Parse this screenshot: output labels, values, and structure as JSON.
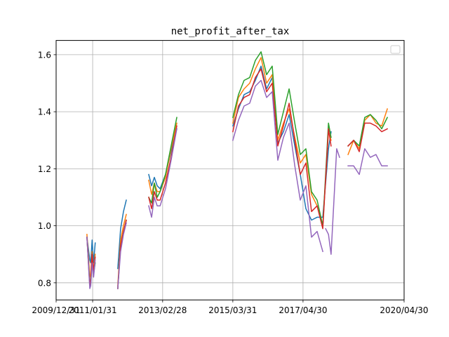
{
  "chart_data": {
    "type": "line",
    "title": "net_profit_after_tax",
    "xlabel": "",
    "ylabel": "",
    "xlim": [
      "2009-12-31",
      "2020-04-30"
    ],
    "ylim": [
      0.74,
      1.65
    ],
    "grid": true,
    "legend": "top-right",
    "x_ticks": [
      "2009/12/31",
      "2011/01/31",
      "2013/02/28",
      "2015/03/31",
      "2017/04/30",
      "2020/04/30"
    ],
    "y_ticks": [
      "0.8",
      "1.0",
      "1.2",
      "1.4",
      "1.6"
    ],
    "series": [
      {
        "color": "#1f77b4",
        "segments": [
          [
            [
              "2010-11-30",
              0.96
            ],
            [
              "2010-12-31",
              0.88
            ],
            [
              "2011-01-10",
              0.87
            ],
            [
              "2011-01-25",
              0.95
            ],
            [
              "2011-02-10",
              0.87
            ],
            [
              "2011-02-28",
              0.94
            ]
          ],
          [
            [
              "2011-10-31",
              0.85
            ],
            [
              "2011-11-30",
              0.99
            ],
            [
              "2011-12-31",
              1.05
            ],
            [
              "2012-01-31",
              1.09
            ]
          ],
          [
            [
              "2012-09-30",
              1.18
            ],
            [
              "2012-10-31",
              1.14
            ],
            [
              "2012-11-30",
              1.17
            ],
            [
              "2012-12-31",
              1.14
            ],
            [
              "2013-01-31",
              1.13
            ],
            [
              "2013-03-31",
              1.18
            ],
            [
              "2013-05-31",
              1.26
            ],
            [
              "2013-07-31",
              1.34
            ]
          ],
          [
            [
              "2015-03-31",
              1.35
            ],
            [
              "2015-05-31",
              1.41
            ],
            [
              "2015-07-31",
              1.46
            ],
            [
              "2015-09-30",
              1.47
            ],
            [
              "2015-11-30",
              1.51
            ],
            [
              "2016-01-31",
              1.56
            ],
            [
              "2016-03-31",
              1.48
            ],
            [
              "2016-05-31",
              1.52
            ],
            [
              "2016-07-31",
              1.29
            ],
            [
              "2016-09-30",
              1.33
            ],
            [
              "2016-11-30",
              1.39
            ],
            [
              "2017-01-31",
              1.28
            ],
            [
              "2017-03-31",
              1.18
            ],
            [
              "2017-05-31",
              1.06
            ],
            [
              "2017-07-31",
              1.02
            ],
            [
              "2017-09-30",
              1.03
            ],
            [
              "2017-11-30",
              1.03
            ],
            [
              "2018-01-31",
              1.27
            ],
            [
              "2018-02-28",
              1.33
            ]
          ]
        ]
      },
      {
        "color": "#ff7f0e",
        "segments": [
          [
            [
              "2010-11-30",
              0.97
            ],
            [
              "2010-12-31",
              0.82
            ],
            [
              "2011-01-10",
              0.83
            ],
            [
              "2011-01-25",
              0.91
            ],
            [
              "2011-02-10",
              0.84
            ],
            [
              "2011-02-28",
              0.9
            ]
          ],
          [
            [
              "2011-10-31",
              0.79
            ],
            [
              "2011-11-30",
              0.95
            ],
            [
              "2011-12-31",
              1.0
            ],
            [
              "2012-01-31",
              1.04
            ]
          ],
          [
            [
              "2012-09-30",
              1.16
            ],
            [
              "2012-10-31",
              1.11
            ],
            [
              "2012-11-30",
              1.15
            ],
            [
              "2012-12-31",
              1.12
            ],
            [
              "2013-01-31",
              1.12
            ],
            [
              "2013-03-31",
              1.17
            ],
            [
              "2013-05-31",
              1.27
            ],
            [
              "2013-07-31",
              1.36
            ]
          ],
          [
            [
              "2015-03-31",
              1.36
            ],
            [
              "2015-05-31",
              1.45
            ],
            [
              "2015-07-31",
              1.48
            ],
            [
              "2015-09-30",
              1.5
            ],
            [
              "2015-11-30",
              1.55
            ],
            [
              "2016-01-31",
              1.59
            ],
            [
              "2016-03-31",
              1.5
            ],
            [
              "2016-05-31",
              1.53
            ],
            [
              "2016-07-31",
              1.3
            ],
            [
              "2016-09-30",
              1.36
            ],
            [
              "2016-11-30",
              1.41
            ],
            [
              "2017-01-31",
              1.31
            ],
            [
              "2017-03-31",
              1.22
            ],
            [
              "2017-05-31",
              1.25
            ],
            [
              "2017-07-31",
              1.11
            ],
            [
              "2017-09-30",
              1.07
            ],
            [
              "2017-11-30",
              1.0
            ],
            [
              "2018-01-31",
              1.33
            ],
            [
              "2018-02-28",
              1.3
            ]
          ],
          [
            [
              "2018-08-31",
              1.25
            ],
            [
              "2018-10-31",
              1.3
            ],
            [
              "2018-12-31",
              1.27
            ],
            [
              "2019-02-28",
              1.37
            ],
            [
              "2019-04-30",
              1.39
            ],
            [
              "2019-06-30",
              1.36
            ],
            [
              "2019-08-31",
              1.35
            ],
            [
              "2019-10-31",
              1.41
            ]
          ]
        ]
      },
      {
        "color": "#2ca02c",
        "segments": [
          [
            [
              "2010-11-30",
              0.96
            ],
            [
              "2010-12-31",
              0.8
            ],
            [
              "2011-01-10",
              0.8
            ],
            [
              "2011-01-25",
              0.89
            ],
            [
              "2011-02-10",
              0.83
            ],
            [
              "2011-02-28",
              0.87
            ]
          ],
          [
            [
              "2011-10-31",
              0.78
            ],
            [
              "2011-11-30",
              0.93
            ],
            [
              "2011-12-31",
              0.98
            ],
            [
              "2012-01-31",
              1.02
            ]
          ],
          [
            [
              "2012-09-30",
              1.1
            ],
            [
              "2012-10-31",
              1.08
            ],
            [
              "2012-11-30",
              1.15
            ],
            [
              "2012-12-31",
              1.1
            ],
            [
              "2013-01-31",
              1.12
            ],
            [
              "2013-03-31",
              1.18
            ],
            [
              "2013-05-31",
              1.28
            ],
            [
              "2013-07-31",
              1.38
            ]
          ],
          [
            [
              "2015-03-31",
              1.38
            ],
            [
              "2015-05-31",
              1.46
            ],
            [
              "2015-07-31",
              1.51
            ],
            [
              "2015-09-30",
              1.52
            ],
            [
              "2015-11-30",
              1.58
            ],
            [
              "2016-01-31",
              1.61
            ],
            [
              "2016-03-31",
              1.53
            ],
            [
              "2016-05-31",
              1.56
            ],
            [
              "2016-07-31",
              1.32
            ],
            [
              "2016-09-30",
              1.4
            ],
            [
              "2016-11-30",
              1.48
            ],
            [
              "2017-01-31",
              1.36
            ],
            [
              "2017-03-31",
              1.25
            ],
            [
              "2017-05-31",
              1.27
            ],
            [
              "2017-07-31",
              1.12
            ],
            [
              "2017-09-30",
              1.09
            ],
            [
              "2017-11-30",
              1.0
            ],
            [
              "2018-01-31",
              1.36
            ],
            [
              "2018-02-28",
              1.31
            ]
          ],
          [
            [
              "2018-08-31",
              1.28
            ],
            [
              "2018-10-31",
              1.3
            ],
            [
              "2018-12-31",
              1.28
            ],
            [
              "2019-02-28",
              1.38
            ],
            [
              "2019-04-30",
              1.39
            ],
            [
              "2019-06-30",
              1.37
            ],
            [
              "2019-08-31",
              1.34
            ],
            [
              "2019-10-31",
              1.38
            ]
          ]
        ]
      },
      {
        "color": "#d62728",
        "segments": [
          [
            [
              "2010-11-30",
              0.96
            ],
            [
              "2010-12-31",
              0.79
            ],
            [
              "2011-01-10",
              0.81
            ],
            [
              "2011-01-25",
              0.9
            ],
            [
              "2011-02-10",
              0.84
            ],
            [
              "2011-02-28",
              0.89
            ]
          ],
          [
            [
              "2011-10-31",
              0.78
            ],
            [
              "2011-11-30",
              0.93
            ],
            [
              "2011-12-31",
              0.98
            ],
            [
              "2012-01-31",
              1.02
            ]
          ],
          [
            [
              "2012-09-30",
              1.1
            ],
            [
              "2012-10-31",
              1.06
            ],
            [
              "2012-11-30",
              1.12
            ],
            [
              "2012-12-31",
              1.09
            ],
            [
              "2013-01-31",
              1.09
            ],
            [
              "2013-03-31",
              1.15
            ],
            [
              "2013-05-31",
              1.24
            ],
            [
              "2013-07-31",
              1.35
            ]
          ],
          [
            [
              "2015-03-31",
              1.33
            ],
            [
              "2015-05-31",
              1.42
            ],
            [
              "2015-07-31",
              1.45
            ],
            [
              "2015-09-30",
              1.46
            ],
            [
              "2015-11-30",
              1.52
            ],
            [
              "2016-01-31",
              1.55
            ],
            [
              "2016-03-31",
              1.47
            ],
            [
              "2016-05-31",
              1.5
            ],
            [
              "2016-07-31",
              1.28
            ],
            [
              "2016-09-30",
              1.35
            ],
            [
              "2016-11-30",
              1.43
            ],
            [
              "2017-01-31",
              1.3
            ],
            [
              "2017-03-31",
              1.18
            ],
            [
              "2017-05-31",
              1.22
            ],
            [
              "2017-07-31",
              1.05
            ],
            [
              "2017-09-30",
              1.07
            ],
            [
              "2017-11-30",
              0.99
            ],
            [
              "2018-01-31",
              1.34
            ],
            [
              "2018-02-28",
              1.28
            ]
          ],
          [
            [
              "2018-08-31",
              1.28
            ],
            [
              "2018-10-31",
              1.3
            ],
            [
              "2018-12-31",
              1.26
            ],
            [
              "2019-02-28",
              1.36
            ],
            [
              "2019-04-30",
              1.36
            ],
            [
              "2019-06-30",
              1.35
            ],
            [
              "2019-08-31",
              1.33
            ],
            [
              "2019-10-31",
              1.34
            ]
          ]
        ]
      },
      {
        "color": "#9467bd",
        "segments": [
          [
            [
              "2010-11-30",
              0.96
            ],
            [
              "2010-12-31",
              0.78
            ],
            [
              "2011-01-10",
              0.79
            ],
            [
              "2011-01-25",
              0.87
            ],
            [
              "2011-02-10",
              0.82
            ],
            [
              "2011-02-28",
              0.88
            ]
          ],
          [
            [
              "2011-10-31",
              0.78
            ],
            [
              "2011-11-30",
              0.91
            ],
            [
              "2011-12-31",
              0.97
            ],
            [
              "2012-01-31",
              1.01
            ]
          ],
          [
            [
              "2012-09-30",
              1.07
            ],
            [
              "2012-10-31",
              1.03
            ],
            [
              "2012-11-30",
              1.1
            ],
            [
              "2012-12-31",
              1.07
            ],
            [
              "2013-01-31",
              1.07
            ],
            [
              "2013-03-31",
              1.13
            ],
            [
              "2013-05-31",
              1.23
            ],
            [
              "2013-07-31",
              1.34
            ]
          ],
          [
            [
              "2015-03-31",
              1.3
            ],
            [
              "2015-05-31",
              1.37
            ],
            [
              "2015-07-31",
              1.42
            ],
            [
              "2015-09-30",
              1.43
            ],
            [
              "2015-11-30",
              1.49
            ],
            [
              "2016-01-31",
              1.51
            ],
            [
              "2016-03-31",
              1.45
            ],
            [
              "2016-05-31",
              1.47
            ],
            [
              "2016-07-31",
              1.23
            ],
            [
              "2016-09-30",
              1.31
            ],
            [
              "2016-11-30",
              1.36
            ],
            [
              "2017-01-31",
              1.21
            ],
            [
              "2017-03-31",
              1.09
            ],
            [
              "2017-05-31",
              1.14
            ],
            [
              "2017-07-31",
              0.96
            ],
            [
              "2017-09-30",
              0.98
            ],
            [
              "2017-11-30",
              0.91
            ]
          ],
          [
            [
              "2017-12-31",
              0.99
            ],
            [
              "2018-01-31",
              0.97
            ],
            [
              "2018-02-28",
              0.9
            ],
            [
              "2018-04-30",
              1.27
            ],
            [
              "2018-05-31",
              1.24
            ]
          ],
          [
            [
              "2018-08-31",
              1.21
            ],
            [
              "2018-10-31",
              1.21
            ],
            [
              "2018-12-31",
              1.18
            ],
            [
              "2019-02-28",
              1.27
            ],
            [
              "2019-04-30",
              1.24
            ],
            [
              "2019-06-30",
              1.25
            ],
            [
              "2019-08-31",
              1.21
            ],
            [
              "2019-10-31",
              1.21
            ]
          ]
        ]
      }
    ]
  }
}
